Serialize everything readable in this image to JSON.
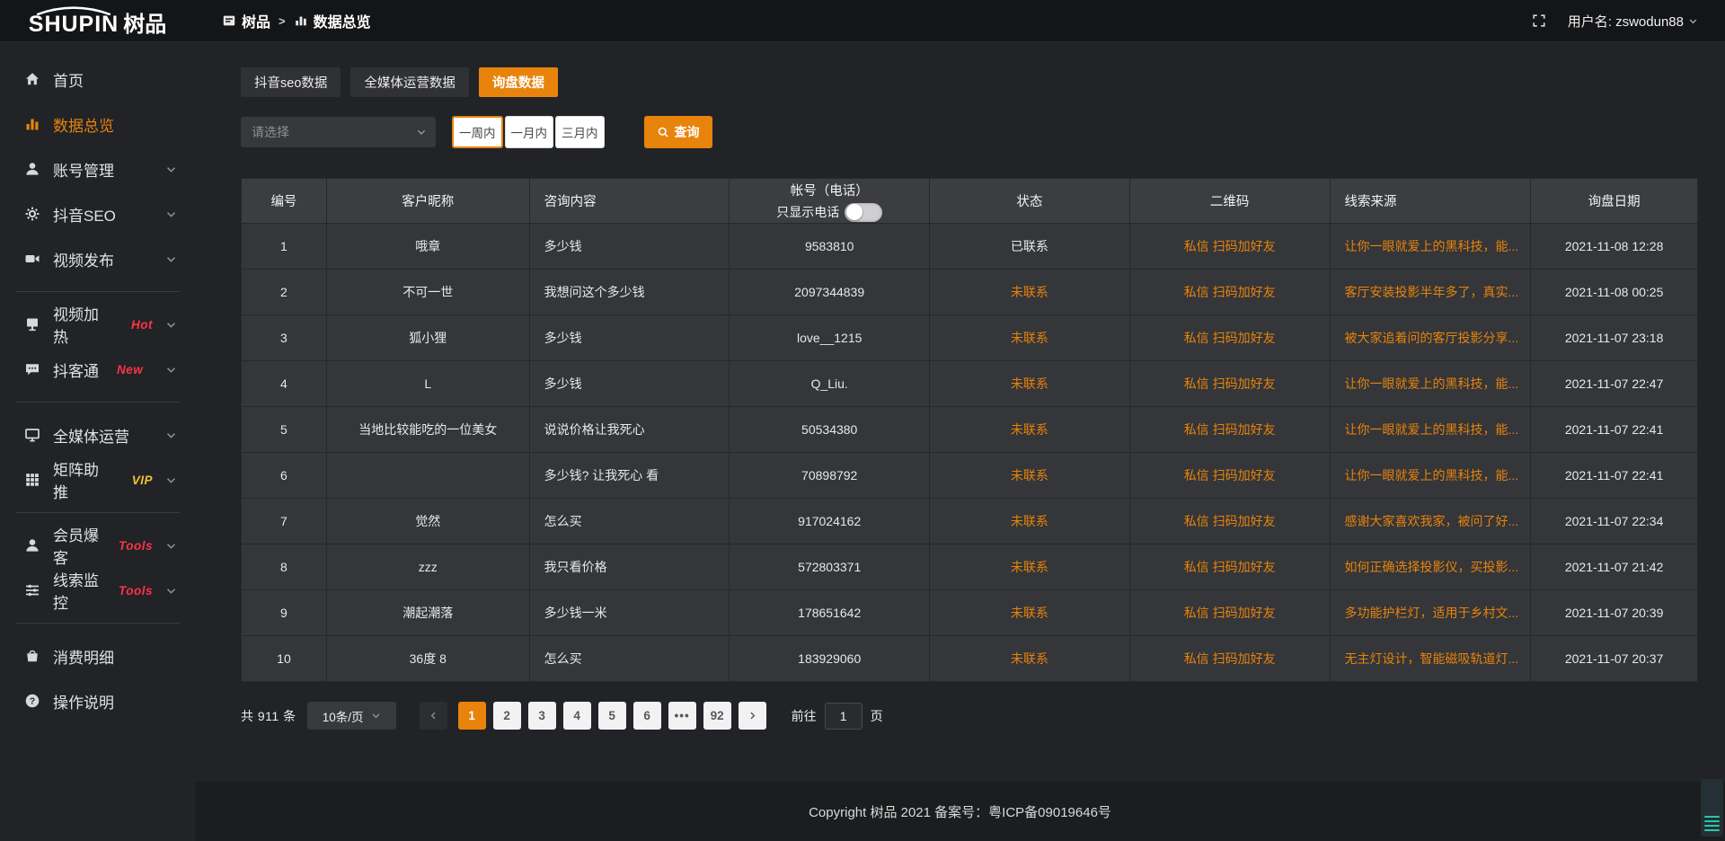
{
  "colors": {
    "accent": "#e8830c",
    "badge_red": "#ff3345",
    "badge_yellow": "#f6c12e",
    "status_pending": "#e8830c"
  },
  "header": {
    "logo_text": "SHUPIN",
    "logo_cn": "树品",
    "breadcrumb": [
      {
        "label": "树品"
      },
      {
        "label": "数据总览"
      }
    ],
    "username": "用户名: zswodun88"
  },
  "sidebar": {
    "items": [
      {
        "name": "home",
        "icon": "home-icon",
        "label": "首页"
      },
      {
        "name": "data-overview",
        "icon": "chart-bar-icon",
        "label": "数据总览",
        "active": true
      },
      {
        "name": "account-management",
        "icon": "user-icon",
        "label": "账号管理",
        "expandable": true
      },
      {
        "name": "douyin-seo",
        "icon": "gear-icon",
        "label": "抖音SEO",
        "expandable": true
      },
      {
        "name": "video-publish",
        "icon": "video-icon",
        "label": "视频发布",
        "expandable": true,
        "divider_after": true
      },
      {
        "name": "video-heating",
        "icon": "screen-icon",
        "label": "视频加热",
        "badge": "Hot",
        "badge_color": "#ff3345",
        "expandable": true
      },
      {
        "name": "doukotong",
        "icon": "chat-icon",
        "label": "抖客通",
        "badge": "New",
        "badge_color": "#ff3345",
        "expandable": true,
        "divider_after": true
      },
      {
        "name": "omnimedia-operation",
        "icon": "monitor-icon",
        "label": "全媒体运营",
        "expandable": true
      },
      {
        "name": "matrix-boost",
        "icon": "grid-icon",
        "label": "矩阵助推",
        "badge": "VIP",
        "badge_color": "#f6c12e",
        "expandable": true,
        "divider_after": true
      },
      {
        "name": "member-baoke",
        "icon": "member-icon",
        "label": "会员爆客",
        "badge": "Tools",
        "badge_color": "#ff3345",
        "expandable": true
      },
      {
        "name": "lead-monitor",
        "icon": "sliders-icon",
        "label": "线索监控",
        "badge": "Tools",
        "badge_color": "#ff3345",
        "expandable": true,
        "divider_after": true
      },
      {
        "name": "consumption-detail",
        "icon": "bag-icon",
        "label": "消费明细"
      },
      {
        "name": "operation-guide",
        "icon": "question-icon",
        "label": "操作说明"
      }
    ]
  },
  "tabs": [
    {
      "name": "douyin-seo-data",
      "label": "抖音seo数据"
    },
    {
      "name": "omnimedia-data",
      "label": "全媒体运营数据"
    },
    {
      "name": "inquiry-data",
      "label": "询盘数据",
      "active": true
    }
  ],
  "filters": {
    "select_placeholder": "请选择",
    "range_buttons": [
      {
        "label": "一周内",
        "active": true
      },
      {
        "label": "一月内"
      },
      {
        "label": "三月内"
      }
    ],
    "search_label": "查询"
  },
  "table": {
    "columns": [
      "编号",
      "客户昵称",
      "咨询内容",
      "帐号（电话）",
      "状态",
      "二维码",
      "线索来源",
      "询盘日期"
    ],
    "phone_toggle_label": "只显示电话",
    "phone_toggle_on": false,
    "rows": [
      {
        "id": "1",
        "nickname": "哦章",
        "content": "多少钱",
        "account": "9583810",
        "status": "已联系",
        "contacted": true,
        "qrcode": "私信 扫码加好友",
        "source": "让你一眼就爱上的黑科技，能...",
        "date": "2021-11-08 12:28"
      },
      {
        "id": "2",
        "nickname": "不可一世",
        "content": "我想问这个多少钱",
        "account": "2097344839",
        "status": "未联系",
        "contacted": false,
        "qrcode": "私信 扫码加好友",
        "source": "客厅安装投影半年多了，真实...",
        "date": "2021-11-08 00:25"
      },
      {
        "id": "3",
        "nickname": "狐小狸",
        "content": "多少钱",
        "account": "love__1215",
        "status": "未联系",
        "contacted": false,
        "qrcode": "私信 扫码加好友",
        "source": "被大家追着问的客厅投影分享...",
        "date": "2021-11-07 23:18"
      },
      {
        "id": "4",
        "nickname": "L",
        "content": "多少钱",
        "account": "Q_Liu.",
        "status": "未联系",
        "contacted": false,
        "qrcode": "私信 扫码加好友",
        "source": "让你一眼就爱上的黑科技，能...",
        "date": "2021-11-07 22:47"
      },
      {
        "id": "5",
        "nickname": "当地比较能吃的一位美女",
        "content": "说说价格让我死心",
        "account": "50534380",
        "status": "未联系",
        "contacted": false,
        "qrcode": "私信 扫码加好友",
        "source": "让你一眼就爱上的黑科技，能...",
        "date": "2021-11-07 22:41"
      },
      {
        "id": "6",
        "nickname": "",
        "content": "多少钱? 让我死心 看",
        "account": "70898792",
        "status": "未联系",
        "contacted": false,
        "qrcode": "私信 扫码加好友",
        "source": "让你一眼就爱上的黑科技，能...",
        "date": "2021-11-07 22:41"
      },
      {
        "id": "7",
        "nickname": "觉然",
        "content": "怎么买",
        "account": "917024162",
        "status": "未联系",
        "contacted": false,
        "qrcode": "私信 扫码加好友",
        "source": "感谢大家喜欢我家，被问了好...",
        "date": "2021-11-07 22:34"
      },
      {
        "id": "8",
        "nickname": "zzz",
        "content": "我只看价格",
        "account": "572803371",
        "status": "未联系",
        "contacted": false,
        "qrcode": "私信 扫码加好友",
        "source": "如何正确选择投影仪，买投影...",
        "date": "2021-11-07 21:42"
      },
      {
        "id": "9",
        "nickname": "潮起潮落",
        "content": "多少钱一米",
        "account": "178651642",
        "status": "未联系",
        "contacted": false,
        "qrcode": "私信 扫码加好友",
        "source": "多功能护栏灯，适用于乡村文...",
        "date": "2021-11-07 20:39"
      },
      {
        "id": "10",
        "nickname": "36度 8",
        "content": "怎么买",
        "account": "183929060",
        "status": "未联系",
        "contacted": false,
        "qrcode": "私信 扫码加好友",
        "source": "无主灯设计，智能磁吸轨道灯...",
        "date": "2021-11-07 20:37"
      }
    ]
  },
  "pagination": {
    "total_label": "共 911 条",
    "page_size": "10条/页",
    "pages": [
      "1",
      "2",
      "3",
      "4",
      "5",
      "6",
      "•••",
      "92"
    ],
    "active_page": "1",
    "goto_label": "前往",
    "goto_value": "1",
    "goto_suffix": "页"
  },
  "footer": {
    "copyright": "Copyright 树品 2021 备案号：粤ICP备09019646号"
  }
}
